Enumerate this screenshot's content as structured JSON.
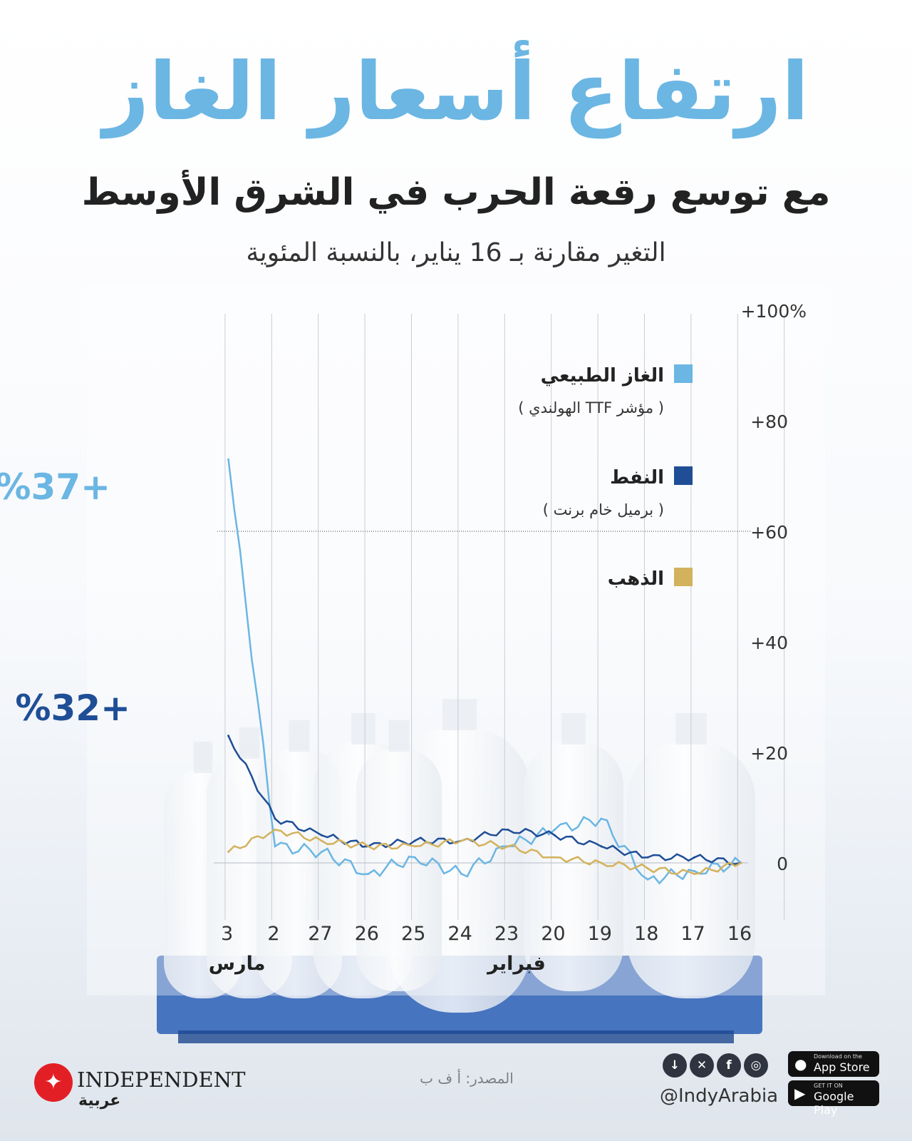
{
  "title": "ارتفاع أسعار الغاز",
  "subtitle": "مع توسع رقعة الحرب في الشرق الأوسط",
  "caption": "التغير مقارنة بـ 16 يناير، بالنسبة المئوية",
  "source": "المصدر: أ ف ب",
  "brand": {
    "name": "INDEPENDENT",
    "arabic": "عربية",
    "logo_icon": "eagle-icon",
    "accent": "#e31f26"
  },
  "social": {
    "handle": "@IndyArabia",
    "icons": [
      "download-icon",
      "x-icon",
      "facebook-icon",
      "instagram-icon"
    ],
    "app_store": {
      "small": "Download on the",
      "large": "App Store"
    },
    "google_play": {
      "small": "GET IT ON",
      "large": "Google Play"
    }
  },
  "chart_data": {
    "type": "line",
    "x_direction": "right-to-left",
    "categories": [
      "16",
      "17",
      "18",
      "19",
      "20",
      "23",
      "24",
      "25",
      "26",
      "27",
      "2",
      "3"
    ],
    "month_labels": [
      {
        "label": "فبراير",
        "at": "23"
      },
      {
        "label": "مارس",
        "at": "3"
      }
    ],
    "y_ticks": [
      "0",
      "+20",
      "+40",
      "+60",
      "+80",
      "+100%"
    ],
    "ylim": [
      -10,
      100
    ],
    "reference_line": 60,
    "legend_position": "top-right",
    "series": [
      {
        "name": "الغاز الطبيعي",
        "note": "( مؤشر TTF الهولندي )",
        "color": "#6bb6e3",
        "values": [
          0,
          -1.5,
          -3,
          8,
          6,
          3,
          -2,
          1,
          -2,
          2,
          3,
          73
        ]
      },
      {
        "name": "النفط",
        "note": "( برميل خام برنت )",
        "color": "#1f4e96",
        "values": [
          0,
          1,
          1,
          3,
          5,
          6,
          4,
          4,
          3,
          5,
          8,
          23
        ]
      },
      {
        "name": "الذهب",
        "note": "",
        "color": "#d3b25d",
        "values": [
          0,
          -2,
          -1,
          0,
          1,
          3,
          4,
          3,
          3,
          4,
          6,
          2
        ]
      }
    ],
    "annotations": [
      {
        "text": "+73%",
        "series": 0
      },
      {
        "text": "+23%",
        "series": 1
      }
    ]
  }
}
